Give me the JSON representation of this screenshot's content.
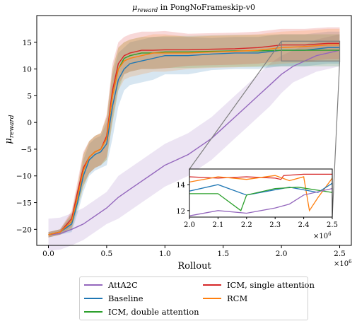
{
  "chart_data": {
    "type": "line",
    "title": "μreward in PongNoFrameskip-v0",
    "title_italic": "μ",
    "title_sub": "reward",
    "title_rest": " in PongNoFrameskip-v0",
    "xlabel": "Rollout",
    "ylabel_symbol": "μ",
    "ylabel_sub": "reward",
    "x_multiplier": "×10",
    "x_multiplier_exp": "6",
    "xlim": [
      -0.1,
      2.6
    ],
    "ylim": [
      -23,
      20
    ],
    "xticks": [
      "0.0",
      "0.5",
      "1.0",
      "1.5",
      "2.0",
      "2.5"
    ],
    "xtick_values": [
      0,
      0.5,
      1.0,
      1.5,
      2.0,
      2.5
    ],
    "yticks": [
      "−20",
      "−15",
      "−10",
      "−5",
      "0",
      "5",
      "10",
      "15"
    ],
    "ytick_values": [
      -20,
      -15,
      -10,
      -5,
      0,
      5,
      10,
      15
    ],
    "grid": false,
    "legend_position": "below",
    "series": [
      {
        "name": "AttA2C",
        "color": "#9467bd",
        "x": [
          0,
          0.1,
          0.2,
          0.3,
          0.4,
          0.5,
          0.6,
          0.7,
          0.8,
          0.9,
          1.0,
          1.1,
          1.2,
          1.3,
          1.4,
          1.5,
          1.6,
          1.7,
          1.8,
          1.9,
          2.0,
          2.1,
          2.2,
          2.3,
          2.4,
          2.5
        ],
        "y": [
          -21,
          -20.8,
          -20,
          -19,
          -17.5,
          -16,
          -14,
          -12.5,
          -11,
          -9.5,
          -8,
          -7,
          -6,
          -4.5,
          -3,
          -1,
          1,
          3,
          5,
          7,
          9,
          10.5,
          11.5,
          12.5,
          13,
          13.5
        ],
        "band": [
          3,
          3,
          3,
          3,
          3,
          3,
          4,
          4,
          4,
          4,
          4,
          4,
          4,
          4,
          4,
          4,
          4,
          4,
          4,
          4,
          3.5,
          3,
          3,
          3,
          3,
          3
        ]
      },
      {
        "name": "Baseline",
        "color": "#1f77b4",
        "x": [
          0,
          0.1,
          0.2,
          0.25,
          0.3,
          0.35,
          0.4,
          0.45,
          0.5,
          0.55,
          0.6,
          0.65,
          0.7,
          0.8,
          0.9,
          1.0,
          1.2,
          1.4,
          1.6,
          1.8,
          2.0,
          2.2,
          2.4,
          2.5
        ],
        "y": [
          -21,
          -20.5,
          -19,
          -15,
          -10,
          -7,
          -6,
          -5.5,
          -4,
          3,
          8,
          10,
          11,
          11.5,
          12,
          12.5,
          12.5,
          12.8,
          13,
          13,
          13.5,
          13.5,
          14,
          14
        ],
        "band": [
          0.5,
          0.5,
          1.5,
          2,
          3,
          3,
          3,
          3,
          4,
          6,
          5,
          4,
          4,
          4,
          4,
          3.5,
          3.5,
          3,
          3,
          3,
          3,
          3,
          3,
          3
        ]
      },
      {
        "name": "ICM, double attention",
        "color": "#2ca02c",
        "x": [
          0,
          0.1,
          0.2,
          0.25,
          0.3,
          0.35,
          0.4,
          0.45,
          0.5,
          0.55,
          0.6,
          0.65,
          0.7,
          0.8,
          0.9,
          1.0,
          1.2,
          1.4,
          1.6,
          1.8,
          2.0,
          2.2,
          2.4,
          2.5
        ],
        "y": [
          -21,
          -20.5,
          -18.5,
          -14,
          -9,
          -6.5,
          -5.5,
          -5,
          -3,
          5,
          10,
          12,
          12.5,
          13,
          13,
          13.2,
          13.2,
          13.3,
          13.4,
          13.4,
          13.5,
          13.5,
          13.5,
          13.5
        ],
        "band": [
          0.5,
          0.5,
          1.5,
          2,
          3,
          3,
          3,
          3,
          4,
          5,
          4,
          3,
          3,
          3,
          3,
          3,
          3,
          3,
          3,
          3,
          3,
          3,
          3,
          3
        ]
      },
      {
        "name": "ICM, single attention",
        "color": "#d62728",
        "x": [
          0,
          0.1,
          0.2,
          0.25,
          0.3,
          0.35,
          0.4,
          0.45,
          0.5,
          0.55,
          0.6,
          0.65,
          0.7,
          0.8,
          0.9,
          1.0,
          1.2,
          1.4,
          1.6,
          1.8,
          2.0,
          2.2,
          2.4,
          2.5
        ],
        "y": [
          -21,
          -20.5,
          -18,
          -13,
          -8.5,
          -6.5,
          -5.5,
          -5,
          -2.5,
          6,
          11,
          12.5,
          13,
          13.5,
          13.5,
          13.6,
          13.6,
          13.7,
          13.8,
          14,
          14.5,
          14.5,
          14.8,
          14.8
        ],
        "band": [
          0.5,
          0.5,
          1.5,
          2,
          3,
          3,
          3,
          3,
          4,
          5,
          4,
          3.5,
          3.5,
          3.5,
          3.5,
          3.5,
          3,
          3,
          3,
          3,
          3,
          3,
          3,
          3
        ]
      },
      {
        "name": "RCM",
        "color": "#ff7f0e",
        "x": [
          0,
          0.1,
          0.2,
          0.25,
          0.3,
          0.35,
          0.4,
          0.45,
          0.5,
          0.55,
          0.6,
          0.65,
          0.7,
          0.8,
          0.9,
          1.0,
          1.2,
          1.4,
          1.6,
          1.8,
          2.0,
          2.2,
          2.4,
          2.5
        ],
        "y": [
          -21,
          -20.5,
          -18.5,
          -14,
          -9,
          -6.5,
          -5.5,
          -5,
          -3,
          5,
          10,
          11.5,
          12,
          12.5,
          13,
          13,
          13,
          13.2,
          13.3,
          13.5,
          14,
          14.2,
          14.5,
          14.5
        ],
        "band": [
          0.5,
          0.5,
          1.5,
          2,
          3,
          3,
          3,
          3,
          4,
          5,
          4,
          3.5,
          3.5,
          3.5,
          3.5,
          3.5,
          3,
          3,
          3,
          3,
          3,
          3,
          3,
          3
        ]
      }
    ],
    "inset": {
      "xlim": [
        2.0,
        2.5
      ],
      "ylim": [
        11.5,
        15.2
      ],
      "xticks": [
        "2.0",
        "2.1",
        "2.2",
        "2.3",
        "2.4",
        "2.5"
      ],
      "xtick_values": [
        2.0,
        2.1,
        2.2,
        2.3,
        2.4,
        2.5
      ],
      "yticks": [
        "12",
        "14"
      ],
      "ytick_values": [
        12,
        14
      ],
      "x_multiplier": "×10",
      "x_multiplier_exp": "6",
      "series": [
        {
          "name": "ICM, single attention",
          "x": [
            2.0,
            2.1,
            2.2,
            2.3,
            2.32,
            2.33,
            2.4,
            2.5
          ],
          "y": [
            14.6,
            14.5,
            14.6,
            14.5,
            14.4,
            14.7,
            14.8,
            14.8
          ]
        },
        {
          "name": "RCM",
          "x": [
            2.0,
            2.1,
            2.2,
            2.3,
            2.35,
            2.4,
            2.42,
            2.45,
            2.5
          ],
          "y": [
            14.2,
            14.6,
            14.4,
            14.7,
            14.3,
            14.6,
            12,
            13,
            14.5
          ]
        },
        {
          "name": "Baseline",
          "x": [
            2.0,
            2.1,
            2.2,
            2.3,
            2.35,
            2.45,
            2.5
          ],
          "y": [
            13.5,
            14,
            13.2,
            13.6,
            13.8,
            13.4,
            14.1
          ]
        },
        {
          "name": "ICM, double attention",
          "x": [
            2.0,
            2.1,
            2.18,
            2.2,
            2.3,
            2.38,
            2.5
          ],
          "y": [
            13.3,
            13.3,
            12.0,
            13.2,
            13.7,
            13.8,
            13.4
          ]
        },
        {
          "name": "AttA2C",
          "x": [
            2.0,
            2.1,
            2.2,
            2.3,
            2.35,
            2.4,
            2.5
          ],
          "y": [
            11.6,
            12.0,
            11.8,
            12.2,
            12.5,
            13.2,
            13.7
          ]
        }
      ]
    },
    "legend": [
      {
        "label": "AttA2C",
        "color": "#9467bd"
      },
      {
        "label": "ICM, single attention",
        "color": "#d62728"
      },
      {
        "label": "Baseline",
        "color": "#1f77b4"
      },
      {
        "label": "RCM",
        "color": "#ff7f0e"
      },
      {
        "label": "ICM, double attention",
        "color": "#2ca02c"
      }
    ]
  }
}
